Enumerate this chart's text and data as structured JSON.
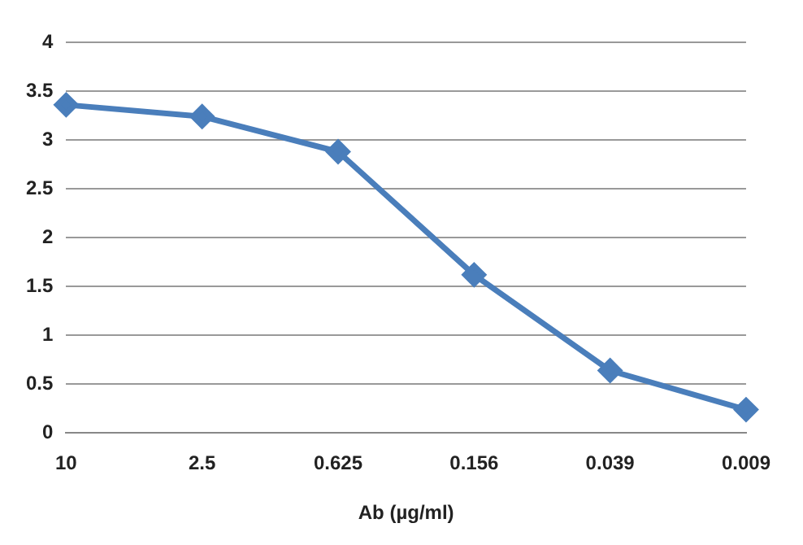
{
  "chart_data": {
    "type": "line",
    "xlabel": "Ab (µg/ml)",
    "categories": [
      "10",
      "2.5",
      "0.625",
      "0.156",
      "0.039",
      "0.009"
    ],
    "series": [
      {
        "color": "#4a7ebb",
        "values": [
          3.36,
          3.24,
          2.88,
          1.62,
          0.64,
          0.24
        ]
      }
    ],
    "ylim": [
      0,
      4
    ],
    "yticks": [
      0,
      0.5,
      1,
      1.5,
      2,
      2.5,
      3,
      3.5,
      4
    ],
    "grid": "y",
    "marker": "diamond",
    "legend": false
  }
}
